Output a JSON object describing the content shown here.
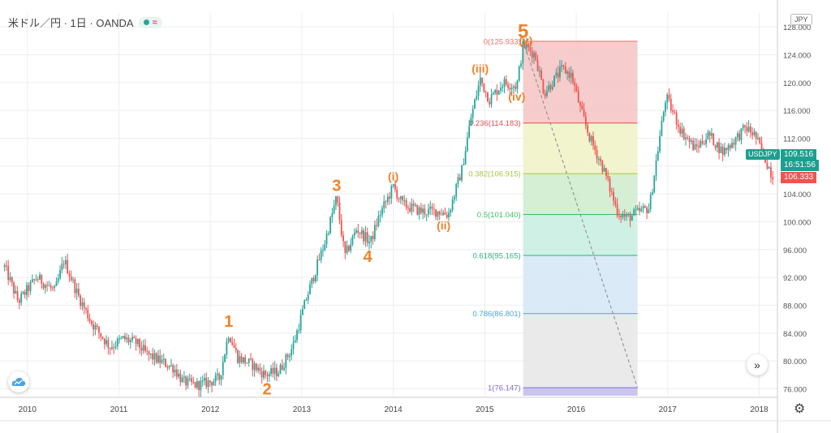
{
  "header": {
    "symbol_title": "米ドル／円 · 1日 · OANDA",
    "wave_symbol": "≈"
  },
  "price_axis_currency": "JPY",
  "price_tags": {
    "symbol": "USDJPY",
    "last_price": "109.516",
    "countdown": "16:51:56",
    "secondary_price": "106.333"
  },
  "colors": {
    "bull": "#26a69a",
    "bear": "#ef5350",
    "wave_labels": "#f0822b",
    "price_tag": "#1e9e8e",
    "secondary_tag": "#ef5350"
  },
  "chart_data": {
    "type": "candlestick",
    "x_axis": {
      "ticks": [
        "2010",
        "2011",
        "2012",
        "2013",
        "2014",
        "2015",
        "2016",
        "2017",
        "2018"
      ],
      "range": [
        2009.7,
        2018.2
      ]
    },
    "y_axis": {
      "ticks": [
        "76.000",
        "80.000",
        "84.000",
        "88.000",
        "92.000",
        "96.000",
        "100.000",
        "104.000",
        "108.000",
        "112.000",
        "116.000",
        "120.000",
        "124.000",
        "128.000"
      ],
      "range": [
        75.0,
        130.0
      ]
    },
    "price_path": [
      [
        2009.75,
        93.5
      ],
      [
        2009.9,
        88.5
      ],
      [
        2010.1,
        92.0
      ],
      [
        2010.3,
        90.0
      ],
      [
        2010.4,
        94.5
      ],
      [
        2010.55,
        89.5
      ],
      [
        2010.7,
        85.5
      ],
      [
        2010.9,
        82.0
      ],
      [
        2011.05,
        83.2
      ],
      [
        2011.2,
        82.5
      ],
      [
        2011.3,
        81.0
      ],
      [
        2011.45,
        80.0
      ],
      [
        2011.6,
        79.0
      ],
      [
        2011.7,
        77.0
      ],
      [
        2011.85,
        76.5
      ],
      [
        2012.0,
        77.0
      ],
      [
        2012.1,
        77.5
      ],
      [
        2012.2,
        84.0
      ],
      [
        2012.3,
        80.5
      ],
      [
        2012.45,
        79.5
      ],
      [
        2012.6,
        78.0
      ],
      [
        2012.75,
        78.5
      ],
      [
        2012.9,
        82.0
      ],
      [
        2013.05,
        89.0
      ],
      [
        2013.25,
        97.0
      ],
      [
        2013.38,
        103.5
      ],
      [
        2013.47,
        95.0
      ],
      [
        2013.6,
        99.0
      ],
      [
        2013.75,
        97.0
      ],
      [
        2013.85,
        101.0
      ],
      [
        2014.0,
        105.0
      ],
      [
        2014.1,
        102.5
      ],
      [
        2014.3,
        101.5
      ],
      [
        2014.5,
        101.5
      ],
      [
        2014.6,
        101.0
      ],
      [
        2014.75,
        107.5
      ],
      [
        2014.85,
        115.0
      ],
      [
        2014.95,
        120.5
      ],
      [
        2015.05,
        117.5
      ],
      [
        2015.2,
        120.0
      ],
      [
        2015.35,
        119.5
      ],
      [
        2015.42,
        125.5
      ],
      [
        2015.55,
        124.0
      ],
      [
        2015.65,
        118.5
      ],
      [
        2015.85,
        122.0
      ],
      [
        2015.95,
        121.0
      ],
      [
        2016.05,
        116.0
      ],
      [
        2016.15,
        112.0
      ],
      [
        2016.3,
        107.5
      ],
      [
        2016.45,
        101.5
      ],
      [
        2016.55,
        100.5
      ],
      [
        2016.7,
        101.5
      ],
      [
        2016.8,
        102.0
      ],
      [
        2016.9,
        111.0
      ],
      [
        2016.98,
        118.0
      ],
      [
        2017.15,
        113.0
      ],
      [
        2017.3,
        110.5
      ],
      [
        2017.45,
        112.5
      ],
      [
        2017.6,
        110.0
      ],
      [
        2017.75,
        112.0
      ],
      [
        2017.85,
        113.5
      ],
      [
        2017.95,
        112.5
      ],
      [
        2018.05,
        109.5
      ],
      [
        2018.15,
        106.5
      ]
    ],
    "wave_labels": [
      {
        "text": "1",
        "x": 2012.2,
        "y": 84.0,
        "position": "above",
        "size": "large"
      },
      {
        "text": "2",
        "x": 2012.62,
        "y": 78.0,
        "position": "below",
        "size": "large"
      },
      {
        "text": "3",
        "x": 2013.38,
        "y": 103.5,
        "position": "above",
        "size": "large"
      },
      {
        "text": "4",
        "x": 2013.72,
        "y": 97.0,
        "position": "below",
        "size": "large"
      },
      {
        "text": "5",
        "x": 2015.42,
        "y": 125.5,
        "position": "above",
        "size": "xlarge"
      },
      {
        "text": "(i)",
        "x": 2014.0,
        "y": 105.0,
        "position": "above",
        "size": "small"
      },
      {
        "text": "(ii)",
        "x": 2014.55,
        "y": 101.0,
        "position": "below",
        "size": "small"
      },
      {
        "text": "(iii)",
        "x": 2014.95,
        "y": 120.5,
        "position": "above",
        "size": "small"
      },
      {
        "text": "(iv)",
        "x": 2015.35,
        "y": 119.5,
        "position": "below",
        "size": "small"
      },
      {
        "text": "(v)",
        "x": 2015.45,
        "y": 125.9,
        "position": "on",
        "size": "small"
      }
    ],
    "fibonacci": {
      "x_start": 2015.42,
      "x_end": 2016.67,
      "levels": [
        {
          "label": "0(125.933)",
          "value": 125.933,
          "line_color": "#f26d6d",
          "fill": "#f4c3c3"
        },
        {
          "label": "0.236(114.183)",
          "value": 114.183,
          "line_color": "#e05050",
          "fill": "#eef2c4"
        },
        {
          "label": "0.382(106.915)",
          "value": 106.915,
          "line_color": "#a7c940",
          "fill": "#cdeccc"
        },
        {
          "label": "0.5(101.040)",
          "value": 101.04,
          "line_color": "#3ebe5e",
          "fill": "#c7eddf"
        },
        {
          "label": "0.618(95.165)",
          "value": 95.165,
          "line_color": "#2fb07a",
          "fill": "#d4e8f6"
        },
        {
          "label": "0.786(86.801)",
          "value": 86.801,
          "line_color": "#4aa6d8",
          "fill": "#e6e6e6"
        },
        {
          "label": "1(76.147)",
          "value": 76.147,
          "line_color": "#7b6fd6",
          "fill": "#cac4f0"
        }
      ],
      "trend_line": {
        "from": [
          2015.42,
          125.933
        ],
        "to": [
          2016.67,
          76.147
        ]
      }
    }
  }
}
